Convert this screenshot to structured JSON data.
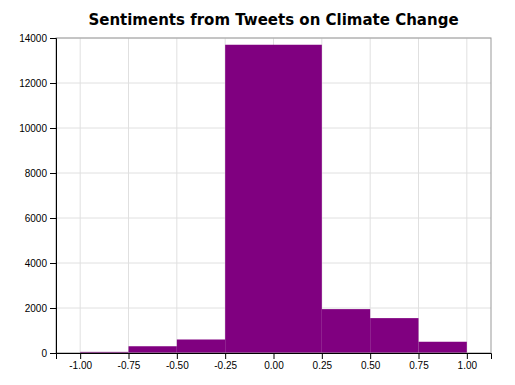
{
  "chart_data": {
    "type": "histogram",
    "title": "Sentiments from Tweets on Climate Change",
    "bins": [
      -1.0,
      -0.75,
      -0.5,
      -0.25,
      0.25,
      0.5,
      0.75,
      1.0
    ],
    "values": [
      50,
      300,
      600,
      13700,
      1950,
      1550,
      500
    ],
    "color": "#800080",
    "xlim": [
      -1.125,
      1.125
    ],
    "ylim": [
      0,
      14000
    ],
    "xticks": [
      {
        "value": -1.0,
        "label": "-1.00"
      },
      -0.75,
      {
        "value": -0.5,
        "label": "-0.50"
      },
      -0.25,
      {
        "value": 0.0,
        "label": "0.00"
      },
      0.25,
      {
        "value": 0.5,
        "label": "0.50"
      },
      0.75,
      {
        "value": 1.0,
        "label": "1.00"
      }
    ],
    "yticks": [
      0,
      2000,
      4000,
      6000,
      8000,
      10000,
      12000,
      14000
    ],
    "grid": true
  }
}
